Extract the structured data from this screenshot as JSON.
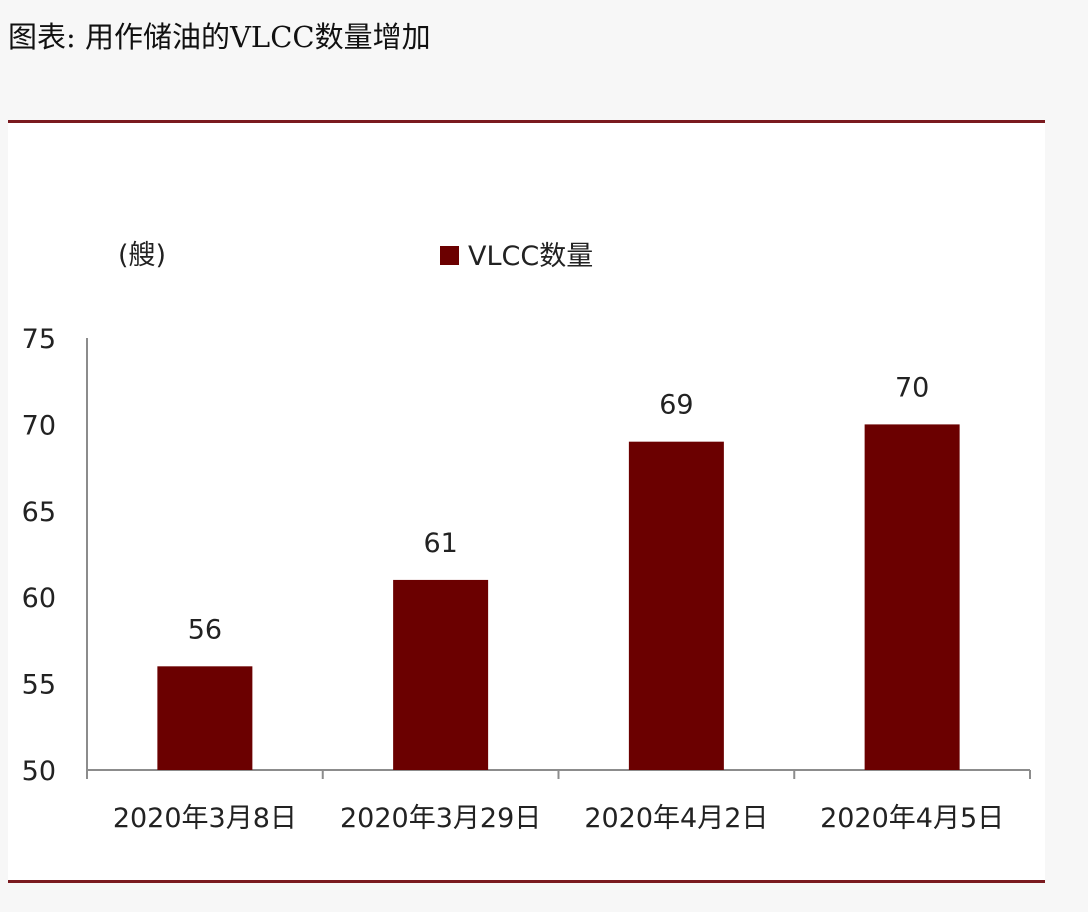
{
  "title": "图表: 用作储油的VLCC数量增加",
  "colors": {
    "bar": "#6b0000",
    "rule": "#7a1a1f",
    "axis": "#8c8c8c"
  },
  "chart_data": {
    "type": "bar",
    "unit_label": "(艘)",
    "categories": [
      "2020年3月8日",
      "2020年3月29日",
      "2020年4月2日",
      "2020年4月5日"
    ],
    "series": [
      {
        "name": "VLCC数量",
        "values": [
          56,
          61,
          69,
          70
        ]
      }
    ],
    "ylim": [
      50,
      75
    ],
    "yticks": [
      50,
      55,
      60,
      65,
      70,
      75
    ],
    "grid": false,
    "legend_position": "top-center",
    "data_labels": true
  }
}
